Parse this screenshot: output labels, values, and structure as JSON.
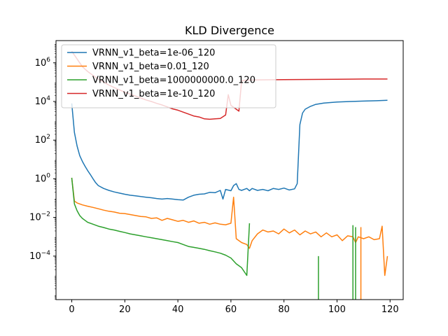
{
  "chart_data": {
    "type": "line",
    "title": "KLD Divergence",
    "xlabel": "",
    "ylabel": "",
    "xlim": [
      -5.95,
      124.95
    ],
    "ylog": true,
    "ylim_log10": [
      -6.25,
      7.15
    ],
    "xticks": [
      0,
      20,
      40,
      60,
      80,
      100,
      120
    ],
    "xtick_labels": [
      "0",
      "20",
      "40",
      "60",
      "80",
      "100",
      "120"
    ],
    "yticks_log10": [
      -4,
      -2,
      0,
      2,
      4,
      6
    ],
    "ytick_labels": [
      "10−4",
      "10−2",
      "100",
      "102",
      "104",
      "106"
    ],
    "legend_position": "upper-left",
    "grid": false,
    "series": [
      {
        "name": "VRNN_v1_beta=1e-06_120",
        "color": "#1f77b4",
        "points": [
          [
            0,
            3.9
          ],
          [
            1,
            2.4
          ],
          [
            2,
            1.7
          ],
          [
            3,
            1.2
          ],
          [
            4,
            0.9
          ],
          [
            5,
            0.65
          ],
          [
            6,
            0.42
          ],
          [
            7,
            0.22
          ],
          [
            8,
            0.0
          ],
          [
            9,
            -0.2
          ],
          [
            10,
            -0.35
          ],
          [
            12,
            -0.5
          ],
          [
            14,
            -0.6
          ],
          [
            16,
            -0.68
          ],
          [
            18,
            -0.74
          ],
          [
            20,
            -0.8
          ],
          [
            22,
            -0.85
          ],
          [
            24,
            -0.88
          ],
          [
            26,
            -0.92
          ],
          [
            28,
            -0.95
          ],
          [
            30,
            -0.98
          ],
          [
            32,
            -1.02
          ],
          [
            34,
            -1.05
          ],
          [
            36,
            -1.02
          ],
          [
            38,
            -1.05
          ],
          [
            40,
            -1.08
          ],
          [
            42,
            -1.1
          ],
          [
            44,
            -0.95
          ],
          [
            46,
            -0.85
          ],
          [
            48,
            -0.8
          ],
          [
            50,
            -0.78
          ],
          [
            52,
            -0.7
          ],
          [
            54,
            -0.72
          ],
          [
            56,
            -0.6
          ],
          [
            57,
            -1.05
          ],
          [
            58,
            -0.55
          ],
          [
            60,
            -0.62
          ],
          [
            61,
            -0.35
          ],
          [
            62,
            -0.25
          ],
          [
            63,
            -0.55
          ],
          [
            64,
            -0.6
          ],
          [
            66,
            -0.5
          ],
          [
            67,
            -0.62
          ],
          [
            68,
            -0.5
          ],
          [
            70,
            -0.6
          ],
          [
            72,
            -0.55
          ],
          [
            74,
            -0.62
          ],
          [
            76,
            -0.5
          ],
          [
            78,
            -0.55
          ],
          [
            80,
            -0.48
          ],
          [
            82,
            -0.58
          ],
          [
            84,
            -0.52
          ],
          [
            85,
            -0.25
          ],
          [
            86,
            2.8
          ],
          [
            87,
            3.4
          ],
          [
            88,
            3.6
          ],
          [
            90,
            3.75
          ],
          [
            92,
            3.85
          ],
          [
            95,
            3.92
          ],
          [
            100,
            3.97
          ],
          [
            105,
            4.0
          ],
          [
            110,
            4.02
          ],
          [
            115,
            4.04
          ],
          [
            119,
            4.06
          ]
        ]
      },
      {
        "name": "VRNN_v1_beta=0.01_120",
        "color": "#ff7f0e",
        "points": [
          [
            0,
            0.05
          ],
          [
            1,
            -1.15
          ],
          [
            2,
            -1.25
          ],
          [
            4,
            -1.35
          ],
          [
            6,
            -1.42
          ],
          [
            8,
            -1.48
          ],
          [
            10,
            -1.55
          ],
          [
            12,
            -1.62
          ],
          [
            14,
            -1.68
          ],
          [
            16,
            -1.72
          ],
          [
            18,
            -1.78
          ],
          [
            20,
            -1.8
          ],
          [
            22,
            -1.85
          ],
          [
            24,
            -1.9
          ],
          [
            26,
            -1.95
          ],
          [
            28,
            -1.97
          ],
          [
            30,
            -2.05
          ],
          [
            32,
            -2.02
          ],
          [
            34,
            -2.15
          ],
          [
            36,
            -2.05
          ],
          [
            38,
            -2.12
          ],
          [
            40,
            -2.2
          ],
          [
            42,
            -2.15
          ],
          [
            44,
            -2.25
          ],
          [
            46,
            -2.18
          ],
          [
            48,
            -2.3
          ],
          [
            50,
            -2.25
          ],
          [
            52,
            -2.35
          ],
          [
            54,
            -2.28
          ],
          [
            56,
            -2.35
          ],
          [
            58,
            -2.38
          ],
          [
            60,
            -2.3
          ],
          [
            61,
            -0.95
          ],
          [
            62,
            -3.1
          ],
          [
            64,
            -3.3
          ],
          [
            66,
            -3.4
          ],
          [
            67,
            -3.6
          ],
          [
            68,
            -3.2
          ],
          [
            70,
            -2.85
          ],
          [
            72,
            -2.65
          ],
          [
            74,
            -2.75
          ],
          [
            76,
            -2.7
          ],
          [
            78,
            -2.85
          ],
          [
            80,
            -2.6
          ],
          [
            82,
            -2.8
          ],
          [
            84,
            -2.65
          ],
          [
            86,
            -2.9
          ],
          [
            88,
            -2.7
          ],
          [
            90,
            -2.85
          ],
          [
            92,
            -2.75
          ],
          [
            94,
            -3.0
          ],
          [
            96,
            -2.8
          ],
          [
            98,
            -3.0
          ],
          [
            100,
            -2.9
          ],
          [
            102,
            -3.2
          ],
          [
            104,
            -2.95
          ],
          [
            106,
            -3.0
          ],
          [
            107,
            -3.3
          ],
          [
            108,
            -3.0
          ],
          [
            110,
            -3.1
          ],
          [
            112,
            -3.0
          ],
          [
            114,
            -3.15
          ],
          [
            116,
            -3.1
          ],
          [
            117,
            -2.45
          ],
          [
            118,
            -5.0
          ],
          [
            119,
            -4.0
          ]
        ]
      },
      {
        "name": "VRNN_v1_beta=1000000000.0_120",
        "color": "#2ca02c",
        "points": [
          [
            0,
            0.05
          ],
          [
            1,
            -1.3
          ],
          [
            2,
            -1.65
          ],
          [
            3,
            -1.9
          ],
          [
            4,
            -2.05
          ],
          [
            5,
            -2.15
          ],
          [
            6,
            -2.25
          ],
          [
            8,
            -2.35
          ],
          [
            10,
            -2.45
          ],
          [
            12,
            -2.52
          ],
          [
            14,
            -2.6
          ],
          [
            16,
            -2.65
          ],
          [
            18,
            -2.72
          ],
          [
            20,
            -2.78
          ],
          [
            22,
            -2.85
          ],
          [
            24,
            -2.9
          ],
          [
            26,
            -2.95
          ],
          [
            28,
            -3.0
          ],
          [
            30,
            -3.05
          ],
          [
            32,
            -3.1
          ],
          [
            34,
            -3.15
          ],
          [
            36,
            -3.2
          ],
          [
            38,
            -3.25
          ],
          [
            40,
            -3.3
          ],
          [
            42,
            -3.4
          ],
          [
            44,
            -3.5
          ],
          [
            46,
            -3.55
          ],
          [
            48,
            -3.6
          ],
          [
            50,
            -3.65
          ],
          [
            52,
            -3.72
          ],
          [
            54,
            -3.78
          ],
          [
            56,
            -3.85
          ],
          [
            58,
            -3.95
          ],
          [
            60,
            -4.1
          ],
          [
            62,
            -4.4
          ],
          [
            64,
            -4.6
          ],
          [
            66,
            -5.0
          ],
          [
            67,
            -2.3
          ]
        ]
      },
      {
        "name": "VRNN_v1_beta=1e-10_120",
        "color": "#d62728",
        "points": [
          [
            0,
            6.6
          ],
          [
            2,
            6.2
          ],
          [
            4,
            5.8
          ],
          [
            6,
            5.55
          ],
          [
            8,
            5.35
          ],
          [
            10,
            5.15
          ],
          [
            12,
            5.0
          ],
          [
            14,
            4.85
          ],
          [
            16,
            4.72
          ],
          [
            18,
            4.6
          ],
          [
            20,
            4.48
          ],
          [
            22,
            4.38
          ],
          [
            24,
            4.28
          ],
          [
            26,
            4.18
          ],
          [
            28,
            4.08
          ],
          [
            30,
            4.0
          ],
          [
            32,
            3.9
          ],
          [
            34,
            3.82
          ],
          [
            36,
            3.72
          ],
          [
            38,
            3.62
          ],
          [
            40,
            3.55
          ],
          [
            42,
            3.45
          ],
          [
            44,
            3.35
          ],
          [
            46,
            3.25
          ],
          [
            48,
            3.2
          ],
          [
            50,
            3.1
          ],
          [
            52,
            3.08
          ],
          [
            54,
            3.1
          ],
          [
            56,
            3.12
          ],
          [
            58,
            3.3
          ],
          [
            59,
            4.35
          ],
          [
            60,
            3.8
          ],
          [
            62,
            3.6
          ],
          [
            63,
            3.5
          ],
          [
            64,
            5.05
          ],
          [
            65,
            5.1
          ],
          [
            70,
            5.12
          ],
          [
            80,
            5.13
          ],
          [
            90,
            5.14
          ],
          [
            100,
            5.15
          ],
          [
            110,
            5.16
          ],
          [
            119,
            5.16
          ]
        ]
      }
    ],
    "spikes": [
      {
        "series": "VRNN_v1_beta=1000000000.0_120",
        "color": "#2ca02c",
        "x": 93,
        "top": -4.0
      },
      {
        "series": "VRNN_v1_beta=1000000000.0_120",
        "color": "#2ca02c",
        "x": 106,
        "top": -2.4
      },
      {
        "series": "VRNN_v1_beta=1000000000.0_120",
        "color": "#2ca02c",
        "x": 107,
        "top": -2.5
      },
      {
        "series": "VRNN_v1_beta=0.01_120",
        "color": "#ff7f0e",
        "x": 109,
        "top": -2.5
      }
    ]
  }
}
